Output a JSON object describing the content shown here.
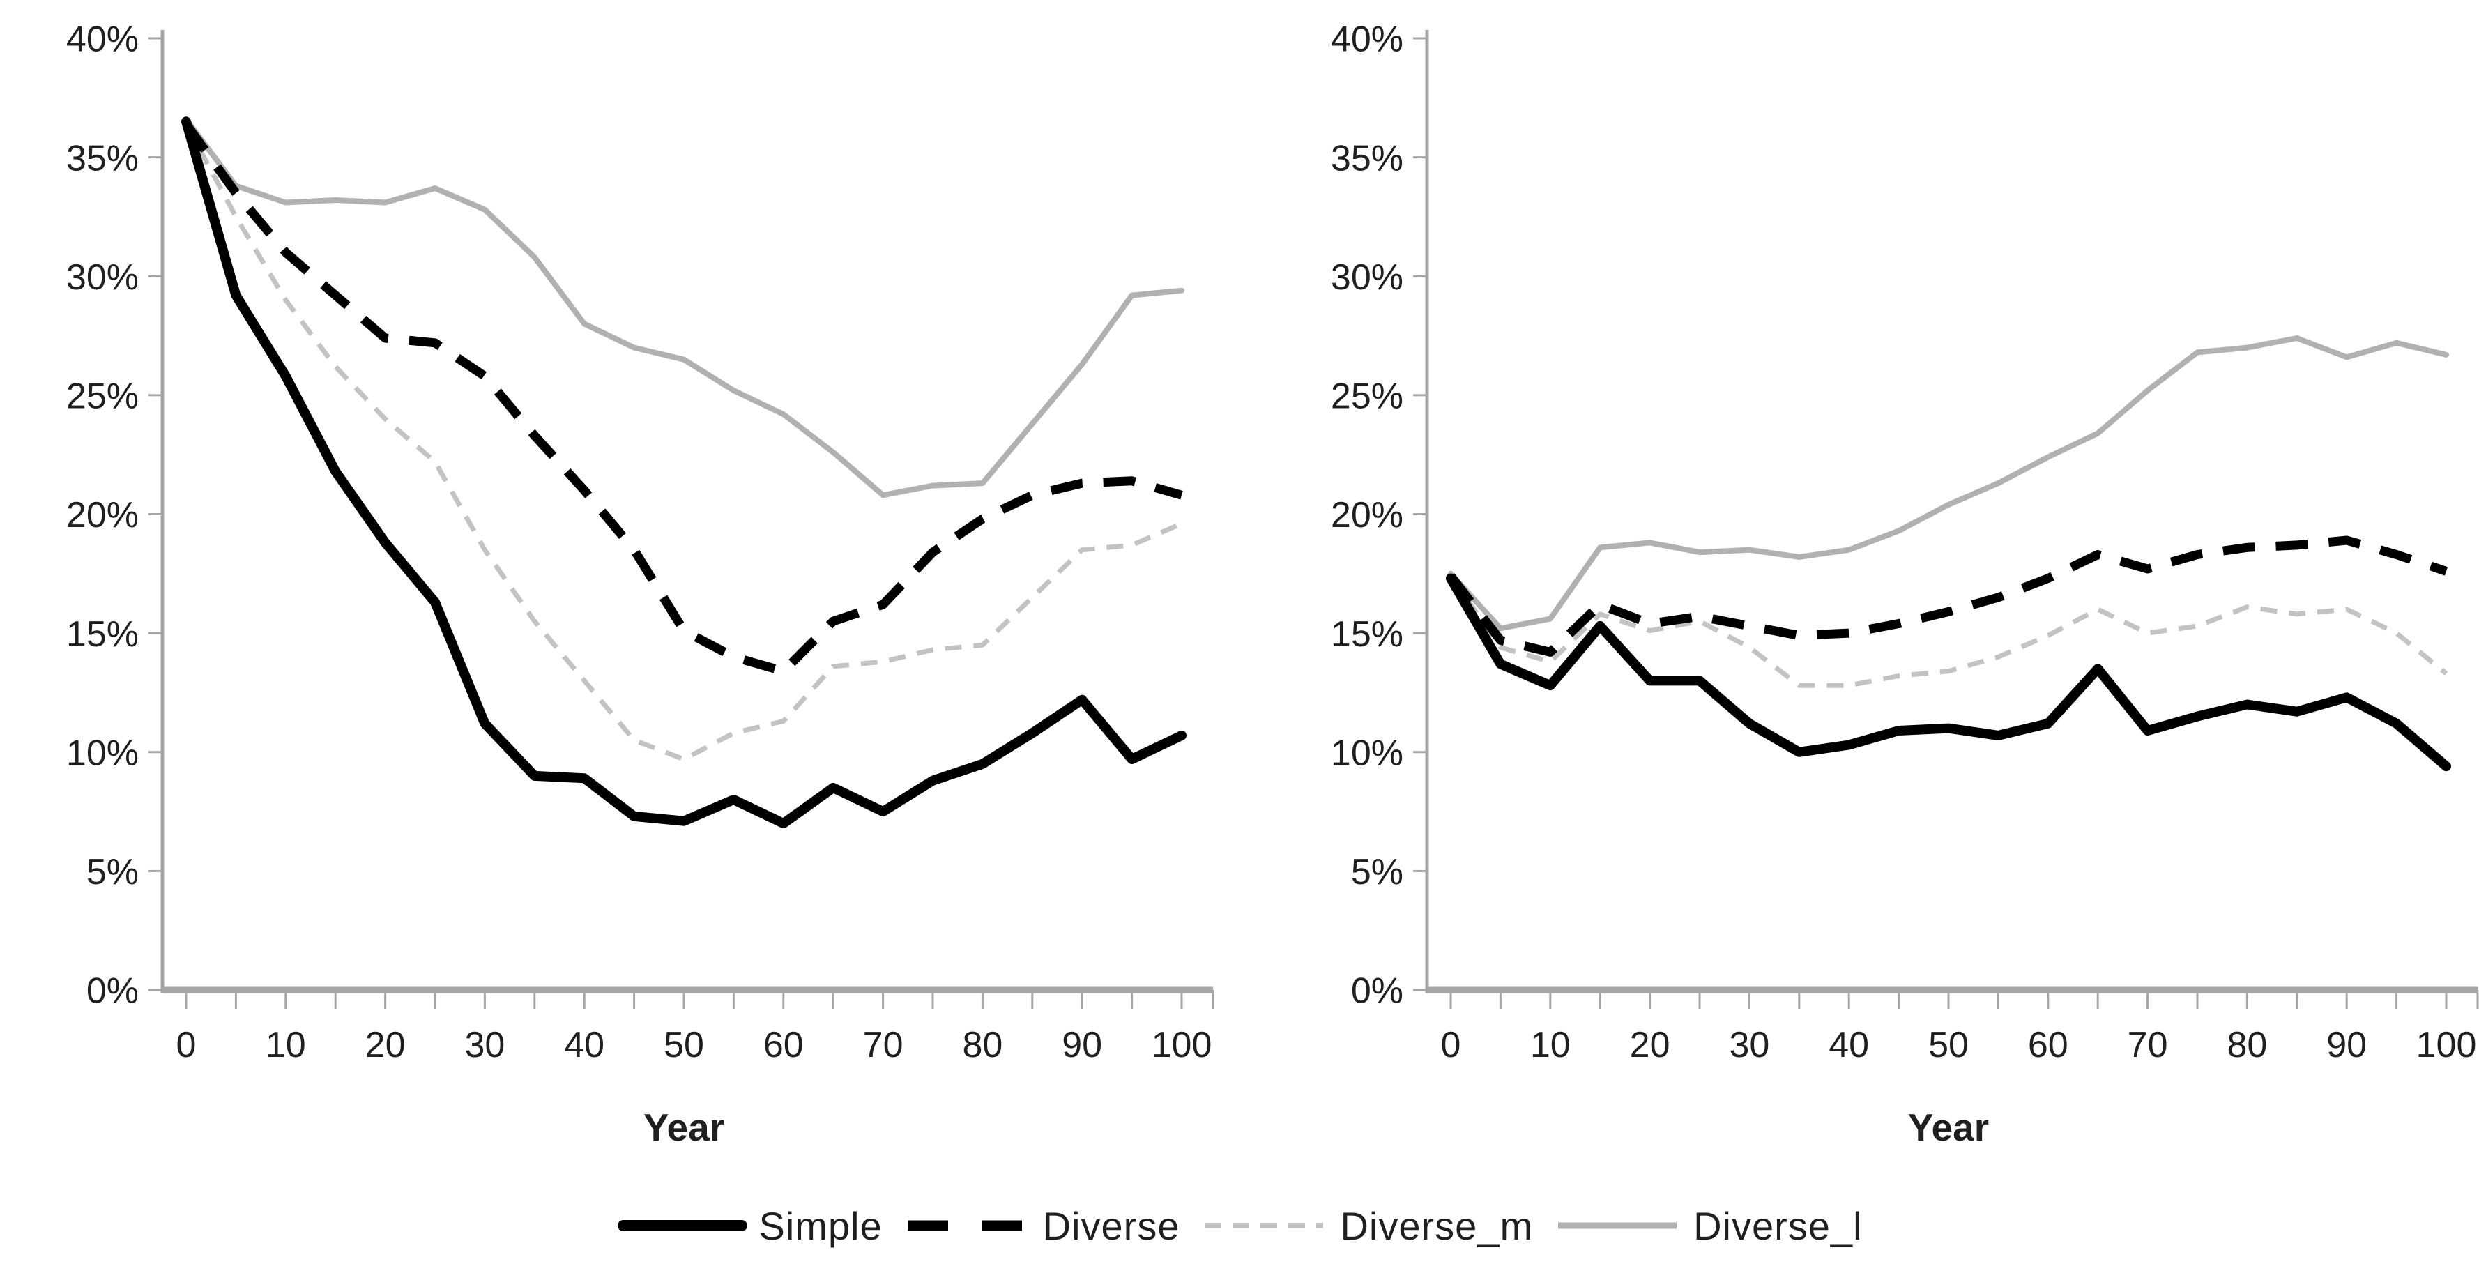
{
  "colors": {
    "background": "#ffffff",
    "text": "#1f1f1f",
    "axis": "#a6a6a6",
    "black_line": "#000000",
    "gray_line": "#b1b1b1",
    "light_gray_line": "#c3c3c3"
  },
  "chart_data": [
    {
      "type": "line",
      "id": "left-panel",
      "title": "",
      "xlabel": "Year",
      "ylabel": "",
      "ylim": [
        0,
        40
      ],
      "y_tick_step": 5,
      "y_tick_suffix": "%",
      "x_tick_step": 5,
      "x_label_step": 10,
      "grid": false,
      "x": [
        0,
        5,
        10,
        15,
        20,
        25,
        30,
        35,
        40,
        45,
        50,
        55,
        60,
        65,
        70,
        75,
        80,
        85,
        90,
        95,
        100
      ],
      "series": [
        {
          "name": "Diverse_l",
          "color": "#b1b1b1",
          "style": "solid",
          "width": 8,
          "values": [
            36.6,
            33.8,
            33.1,
            33.2,
            33.1,
            33.7,
            32.8,
            30.8,
            28.0,
            27.0,
            26.5,
            25.2,
            24.2,
            22.6,
            20.8,
            21.2,
            21.3,
            23.8,
            26.3,
            29.2,
            29.4
          ]
        },
        {
          "name": "Diverse_m",
          "color": "#c3c3c3",
          "style": "shortdash",
          "width": 7,
          "values": [
            36.4,
            32.5,
            29.0,
            26.2,
            24.0,
            22.2,
            18.5,
            15.5,
            13.0,
            10.5,
            9.7,
            10.8,
            11.3,
            13.6,
            13.8,
            14.3,
            14.5,
            16.5,
            18.5,
            18.7,
            19.6
          ]
        },
        {
          "name": "Diverse",
          "color": "#000000",
          "style": "dash",
          "width": 13,
          "values": [
            36.4,
            33.5,
            31.0,
            29.2,
            27.4,
            27.2,
            25.8,
            23.3,
            21.0,
            18.5,
            15.1,
            14.0,
            13.4,
            15.5,
            16.2,
            18.4,
            19.8,
            20.8,
            21.3,
            21.4,
            20.8
          ]
        },
        {
          "name": "Simple",
          "color": "#000000",
          "style": "solid",
          "width": 14,
          "values": [
            36.5,
            29.2,
            25.8,
            21.8,
            18.8,
            16.3,
            11.2,
            9.0,
            8.9,
            7.3,
            7.1,
            8.0,
            7.0,
            8.5,
            7.5,
            8.8,
            9.5,
            10.8,
            12.2,
            9.7,
            10.7
          ]
        }
      ]
    },
    {
      "type": "line",
      "id": "right-panel",
      "title": "",
      "xlabel": "Year",
      "ylabel": "",
      "ylim": [
        0,
        40
      ],
      "y_tick_step": 5,
      "y_tick_suffix": "%",
      "x_tick_step": 5,
      "x_label_step": 10,
      "grid": false,
      "x": [
        0,
        5,
        10,
        15,
        20,
        25,
        30,
        35,
        40,
        45,
        50,
        55,
        60,
        65,
        70,
        75,
        80,
        85,
        90,
        95,
        100
      ],
      "series": [
        {
          "name": "Diverse_l",
          "color": "#b1b1b1",
          "style": "solid",
          "width": 8,
          "values": [
            17.5,
            15.2,
            15.6,
            18.6,
            18.8,
            18.4,
            18.5,
            18.2,
            18.5,
            19.3,
            20.4,
            21.3,
            22.4,
            23.4,
            25.2,
            26.8,
            27.0,
            27.4,
            26.6,
            27.2,
            26.7
          ]
        },
        {
          "name": "Diverse_m",
          "color": "#c3c3c3",
          "style": "shortdash",
          "width": 7,
          "values": [
            17.4,
            14.4,
            13.8,
            15.8,
            15.1,
            15.5,
            14.4,
            12.8,
            12.8,
            13.2,
            13.4,
            14.0,
            14.9,
            16.0,
            15.0,
            15.3,
            16.1,
            15.8,
            16.0,
            15.0,
            13.3
          ]
        },
        {
          "name": "Diverse",
          "color": "#000000",
          "style": "dash",
          "width": 13,
          "values": [
            17.4,
            14.7,
            14.2,
            16.2,
            15.4,
            15.7,
            15.3,
            14.9,
            15.0,
            15.4,
            15.9,
            16.5,
            17.3,
            18.3,
            17.7,
            18.3,
            18.6,
            18.7,
            18.9,
            18.3,
            17.6
          ]
        },
        {
          "name": "Simple",
          "color": "#000000",
          "style": "solid",
          "width": 14,
          "values": [
            17.3,
            13.7,
            12.8,
            15.3,
            13.0,
            13.0,
            11.2,
            10.0,
            10.3,
            10.9,
            11.0,
            10.7,
            11.2,
            13.5,
            10.9,
            11.5,
            12.0,
            11.7,
            12.3,
            11.2,
            9.4
          ]
        }
      ]
    }
  ],
  "legend": {
    "order": [
      "Simple",
      "Diverse",
      "Diverse_m",
      "Diverse_l"
    ],
    "labels": {
      "simple": "Simple",
      "diverse": "Diverse",
      "diverse_m": "Diverse_m",
      "diverse_l": "Diverse_l"
    }
  }
}
